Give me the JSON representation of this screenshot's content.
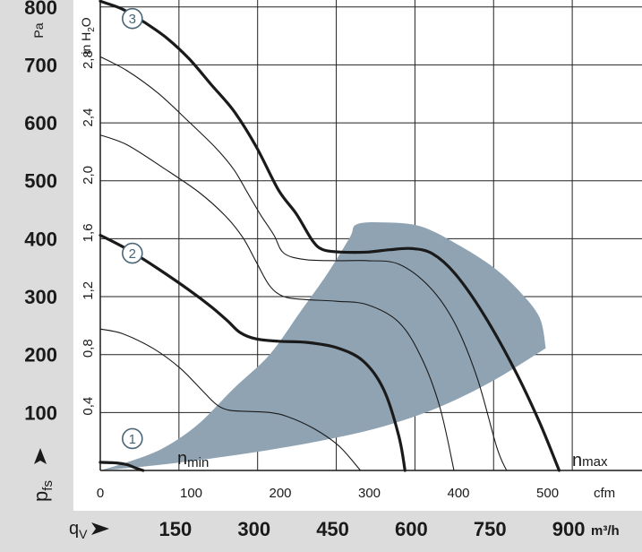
{
  "chart_data": {
    "type": "line",
    "axes": {
      "y_left_pa": {
        "unit": "Pa",
        "ticks": [
          "100",
          "200",
          "300",
          "400",
          "500",
          "600",
          "700",
          "800"
        ],
        "tick_values": [
          100,
          200,
          300,
          400,
          500,
          600,
          700,
          800
        ],
        "range": [
          0,
          812
        ]
      },
      "y_inner_inh2o": {
        "unit_main": "in H",
        "unit_sub": "2",
        "unit_tail": "O",
        "ticks": [
          "0,4",
          "0,8",
          "1,2",
          "1,6",
          "2,0",
          "2,4",
          "2,8"
        ],
        "tick_values": [
          0.4,
          0.8,
          1.2,
          1.6,
          2.0,
          2.4,
          2.8
        ],
        "pa_per_inh2o": 249.09
      },
      "x_cfm": {
        "unit": "cfm",
        "ticks": [
          "0",
          "100",
          "200",
          "300",
          "400",
          "500"
        ],
        "tick_values": [
          0,
          100,
          200,
          300,
          400,
          500
        ],
        "range": [
          0,
          608
        ]
      },
      "x_m3h": {
        "unit": "m³/h",
        "ticks": [
          "150",
          "300",
          "450",
          "600",
          "750",
          "900"
        ],
        "tick_values": [
          150,
          300,
          450,
          600,
          750,
          900
        ],
        "m3h_per_cfm": 1.699
      },
      "y_symbol": "p",
      "y_symbol_sub": "fs",
      "x_symbol": "q",
      "x_symbol_sub": "V",
      "grid": true
    },
    "labels": {
      "n_min": "n",
      "n_min_sub": "min",
      "n_max": "n",
      "n_max_sub": "max"
    },
    "curve_markers": [
      {
        "label": "1",
        "x": 36,
        "y": 55
      },
      {
        "label": "2",
        "x": 36,
        "y": 375
      },
      {
        "label": "3",
        "x": 36,
        "y": 780
      }
    ],
    "series": [
      {
        "style": "bold",
        "points": [
          [
            0,
            14
          ],
          [
            18,
            13
          ],
          [
            30,
            10
          ],
          [
            40,
            4
          ],
          [
            48,
            0
          ]
        ]
      },
      {
        "style": "thin",
        "points": [
          [
            0,
            244
          ],
          [
            25,
            236
          ],
          [
            60,
            210
          ],
          [
            90,
            176
          ],
          [
            115,
            137
          ],
          [
            131,
            113
          ],
          [
            145,
            104
          ],
          [
            165,
            102
          ],
          [
            190,
            100
          ],
          [
            210,
            93
          ],
          [
            240,
            72
          ],
          [
            268,
            42
          ],
          [
            292,
            0
          ]
        ]
      },
      {
        "style": "bold",
        "points": [
          [
            0,
            406
          ],
          [
            30,
            382
          ],
          [
            65,
            348
          ],
          [
            100,
            311
          ],
          [
            125,
            282
          ],
          [
            143,
            258
          ],
          [
            157,
            238
          ],
          [
            175,
            227
          ],
          [
            200,
            223
          ],
          [
            232,
            221
          ],
          [
            265,
            212
          ],
          [
            295,
            189
          ],
          [
            318,
            140
          ],
          [
            335,
            60
          ],
          [
            342,
            0
          ]
        ]
      },
      {
        "style": "thin",
        "points": [
          [
            0,
            579
          ],
          [
            30,
            562
          ],
          [
            70,
            523
          ],
          [
            110,
            481
          ],
          [
            140,
            440
          ],
          [
            160,
            402
          ],
          [
            175,
            360
          ],
          [
            190,
            319
          ],
          [
            206,
            300
          ],
          [
            230,
            295
          ],
          [
            265,
            292
          ],
          [
            300,
            286
          ],
          [
            335,
            256
          ],
          [
            360,
            196
          ],
          [
            381,
            110
          ],
          [
            397,
            0
          ]
        ]
      },
      {
        "style": "thin",
        "points": [
          [
            0,
            714
          ],
          [
            30,
            690
          ],
          [
            65,
            651
          ],
          [
            100,
            601
          ],
          [
            130,
            556
          ],
          [
            150,
            519
          ],
          [
            165,
            480
          ],
          [
            180,
            441
          ],
          [
            195,
            406
          ],
          [
            206,
            375
          ],
          [
            230,
            364
          ],
          [
            265,
            362
          ],
          [
            300,
            362
          ],
          [
            335,
            356
          ],
          [
            370,
            316
          ],
          [
            398,
            254
          ],
          [
            423,
            160
          ],
          [
            445,
            40
          ],
          [
            456,
            0
          ]
        ]
      },
      {
        "style": "bold",
        "points": [
          [
            0,
            810
          ],
          [
            25,
            796
          ],
          [
            50,
            773
          ],
          [
            75,
            746
          ],
          [
            100,
            710
          ],
          [
            125,
            665
          ],
          [
            150,
            620
          ],
          [
            175,
            559
          ],
          [
            200,
            484
          ],
          [
            220,
            443
          ],
          [
            238,
            397
          ],
          [
            250,
            381
          ],
          [
            270,
            377
          ],
          [
            300,
            377
          ],
          [
            325,
            381
          ],
          [
            350,
            383
          ],
          [
            373,
            374
          ],
          [
            398,
            340
          ],
          [
            430,
            270
          ],
          [
            465,
            174
          ],
          [
            493,
            83
          ],
          [
            515,
            0
          ]
        ]
      }
    ],
    "operating_region": {
      "color": "#8fa3b3",
      "upper_boundary": [
        [
          0,
          0
        ],
        [
          30,
          14
        ],
        [
          70,
          38
        ],
        [
          110,
          80
        ],
        [
          150,
          142
        ],
        [
          190,
          200
        ],
        [
          225,
          275
        ],
        [
          255,
          340
        ],
        [
          280,
          402
        ],
        [
          288,
          425
        ],
        [
          320,
          428
        ],
        [
          360,
          421
        ],
        [
          400,
          391
        ],
        [
          440,
          352
        ],
        [
          470,
          310
        ],
        [
          493,
          264
        ],
        [
          500,
          211
        ]
      ],
      "lower_boundary": [
        [
          500,
          211
        ],
        [
          440,
          154
        ],
        [
          380,
          109
        ],
        [
          320,
          77
        ],
        [
          260,
          55
        ],
        [
          200,
          38
        ],
        [
          140,
          24
        ],
        [
          80,
          12
        ],
        [
          30,
          4
        ],
        [
          0,
          0
        ]
      ]
    }
  }
}
